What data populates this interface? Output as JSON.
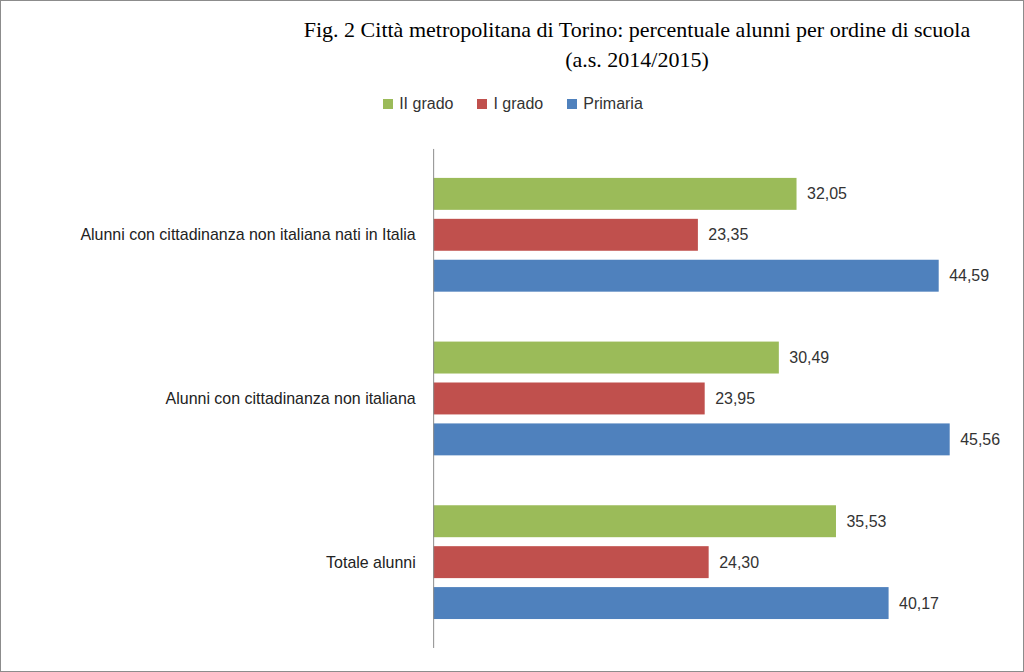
{
  "chart_data": {
    "type": "bar",
    "orientation": "horizontal",
    "title": "Fig. 2 Città metropolitana di Torino: percentuale alunni per ordine di scuola",
    "subtitle": "(a.s. 2014/2015)",
    "categories": [
      "Alunni con cittadinanza non italiana nati in Italia",
      "Alunni con cittadinanza non italiana",
      "Totale alunni"
    ],
    "series": [
      {
        "name": "II grado",
        "color": "#9BBB59",
        "values": [
          32.05,
          30.49,
          35.53
        ],
        "value_labels": [
          "32,05",
          "30,49",
          "35,53"
        ]
      },
      {
        "name": "I grado",
        "color": "#C0504D",
        "values": [
          23.35,
          23.95,
          24.3
        ],
        "value_labels": [
          "23,35",
          "23,95",
          "24,30"
        ]
      },
      {
        "name": "Primaria",
        "color": "#4F81BD",
        "values": [
          44.59,
          45.56,
          40.17
        ],
        "value_labels": [
          "44,59",
          "45,56",
          "40,17"
        ]
      }
    ],
    "xlim": [
      0,
      50
    ],
    "xticks": [],
    "grid": false,
    "legend": "top",
    "data_labels": true,
    "tick_labels": "y"
  }
}
